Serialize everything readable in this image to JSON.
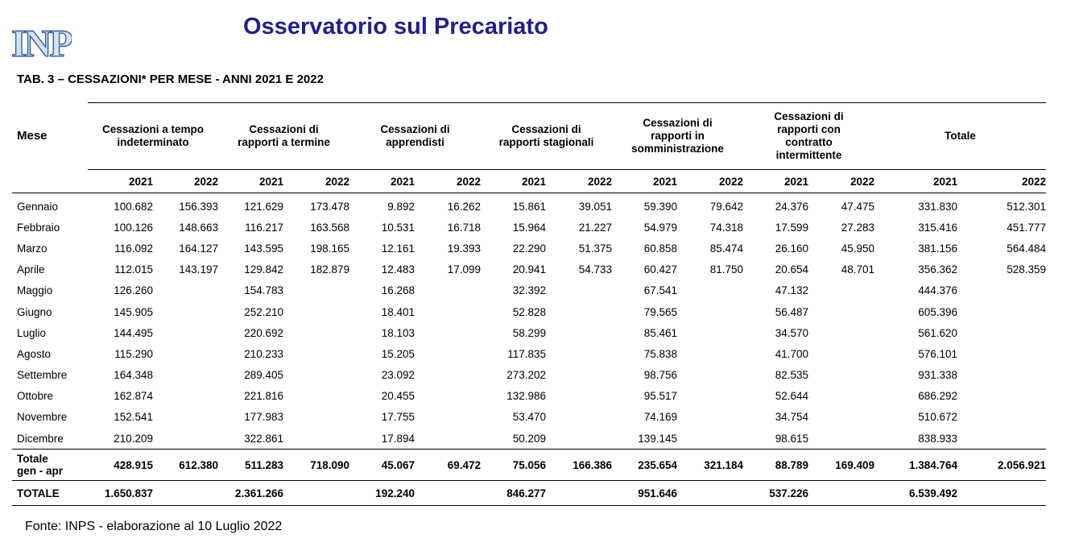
{
  "header": {
    "logo_text": "INPS",
    "title": "Osservatorio sul Precariato"
  },
  "table": {
    "caption": "TAB. 3 – CESSAZIONI* PER MESE - ANNI 2021 E 2022",
    "row_header": "Mese",
    "groups": [
      "Cessazioni a tempo indeterminato",
      "Cessazioni di rapporti a termine",
      "Cessazioni di apprendisti",
      "Cessazioni di rapporti stagionali",
      "Cessazioni di rapporti in somministrazione",
      "Cessazioni di rapporti con contratto intermittente",
      "Totale"
    ],
    "years": [
      "2021",
      "2022"
    ],
    "rows": [
      {
        "month": "Gennaio",
        "values": [
          "100.682",
          "156.393",
          "121.629",
          "173.478",
          "9.892",
          "16.262",
          "15.861",
          "39.051",
          "59.390",
          "79.642",
          "24.376",
          "47.475",
          "331.830",
          "512.301"
        ]
      },
      {
        "month": "Febbraio",
        "values": [
          "100.126",
          "148.663",
          "116.217",
          "163.568",
          "10.531",
          "16.718",
          "15.964",
          "21.227",
          "54.979",
          "74.318",
          "17.599",
          "27.283",
          "315.416",
          "451.777"
        ]
      },
      {
        "month": "Marzo",
        "values": [
          "116.092",
          "164.127",
          "143.595",
          "198.165",
          "12.161",
          "19.393",
          "22.290",
          "51.375",
          "60.858",
          "85.474",
          "26.160",
          "45.950",
          "381.156",
          "564.484"
        ]
      },
      {
        "month": "Aprile",
        "values": [
          "112.015",
          "143.197",
          "129.842",
          "182.879",
          "12.483",
          "17.099",
          "20.941",
          "54.733",
          "60.427",
          "81.750",
          "20.654",
          "48.701",
          "356.362",
          "528.359"
        ]
      },
      {
        "month": "Maggio",
        "values": [
          "126.260",
          "",
          "154.783",
          "",
          "16.268",
          "",
          "32.392",
          "",
          "67.541",
          "",
          "47.132",
          "",
          "444.376",
          ""
        ]
      },
      {
        "month": "Giugno",
        "values": [
          "145.905",
          "",
          "252.210",
          "",
          "18.401",
          "",
          "52.828",
          "",
          "79.565",
          "",
          "56.487",
          "",
          "605.396",
          ""
        ]
      },
      {
        "month": "Luglio",
        "values": [
          "144.495",
          "",
          "220.692",
          "",
          "18.103",
          "",
          "58.299",
          "",
          "85.461",
          "",
          "34.570",
          "",
          "561.620",
          ""
        ]
      },
      {
        "month": "Agosto",
        "values": [
          "115.290",
          "",
          "210.233",
          "",
          "15.205",
          "",
          "117.835",
          "",
          "75.838",
          "",
          "41.700",
          "",
          "576.101",
          ""
        ]
      },
      {
        "month": "Settembre",
        "values": [
          "164.348",
          "",
          "289.405",
          "",
          "23.092",
          "",
          "273.202",
          "",
          "98.756",
          "",
          "82.535",
          "",
          "931.338",
          ""
        ]
      },
      {
        "month": "Ottobre",
        "values": [
          "162.874",
          "",
          "221.816",
          "",
          "20.455",
          "",
          "132.986",
          "",
          "95.517",
          "",
          "52.644",
          "",
          "686.292",
          ""
        ]
      },
      {
        "month": "Novembre",
        "values": [
          "152.541",
          "",
          "177.983",
          "",
          "17.755",
          "",
          "53.470",
          "",
          "74.169",
          "",
          "34.754",
          "",
          "510.672",
          ""
        ]
      },
      {
        "month": "Dicembre",
        "values": [
          "210.209",
          "",
          "322.861",
          "",
          "17.894",
          "",
          "50.209",
          "",
          "139.145",
          "",
          "98.615",
          "",
          "838.933",
          ""
        ]
      }
    ],
    "subtotal": {
      "label_line1": "Totale",
      "label_line2": "gen - apr",
      "values": [
        "428.915",
        "612.380",
        "511.283",
        "718.090",
        "45.067",
        "69.472",
        "75.056",
        "166.386",
        "235.654",
        "321.184",
        "88.789",
        "169.409",
        "1.384.764",
        "2.056.921"
      ]
    },
    "total": {
      "label": "TOTALE",
      "values": [
        "1.650.837",
        "",
        "2.361.266",
        "",
        "192.240",
        "",
        "846.277",
        "",
        "951.646",
        "",
        "537.226",
        "",
        "6.539.492",
        ""
      ]
    }
  },
  "footer": {
    "source": "Fonte: INPS - elaborazione al 10 Luglio 2022"
  }
}
